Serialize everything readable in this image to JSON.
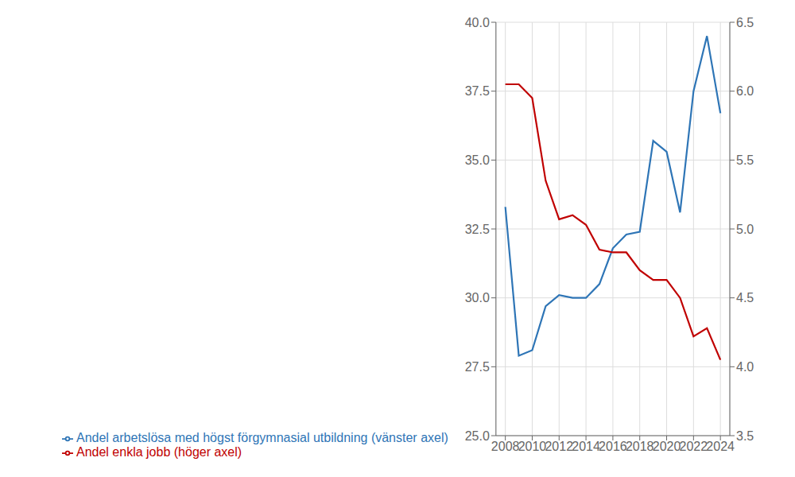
{
  "chart_data": {
    "type": "line",
    "x": [
      2008,
      2009,
      2010,
      2011,
      2012,
      2013,
      2014,
      2015,
      2016,
      2017,
      2018,
      2019,
      2020,
      2021,
      2022,
      2023,
      2024
    ],
    "series": [
      {
        "name": "Andel arbetslösa med högst förgymnasial utbildning (vänster axel)",
        "color": "#2E75B6",
        "values": [
          33.3,
          27.9,
          28.1,
          29.7,
          30.1,
          30.0,
          30.0,
          30.5,
          31.8,
          32.3,
          32.4,
          35.7,
          35.3,
          33.1,
          37.5,
          39.5,
          36.7
        ]
      },
      {
        "name": "Andel enkla jobb (höger axel)",
        "color": "#C00000",
        "axis": "y2",
        "values": [
          6.05,
          6.05,
          5.95,
          5.35,
          5.07,
          5.1,
          5.03,
          4.85,
          4.83,
          4.83,
          4.7,
          4.63,
          4.63,
          4.5,
          4.22,
          4.28,
          4.05
        ]
      }
    ],
    "xlim": [
      2007.3,
      2024.7
    ],
    "xticks": [
      2008,
      2010,
      2012,
      2014,
      2016,
      2018,
      2020,
      2022,
      2024
    ],
    "ylim": [
      25.0,
      40.0
    ],
    "yticks": [
      {
        "value": 25.0,
        "label": "25.0"
      },
      {
        "value": 27.5,
        "label": "27.5"
      },
      {
        "value": 30.0,
        "label": "30.0"
      },
      {
        "value": 32.5,
        "label": "32.5"
      },
      {
        "value": 35.0,
        "label": "35.0"
      },
      {
        "value": 37.5,
        "label": "37.5"
      },
      {
        "value": 40.0,
        "label": "40.0"
      }
    ],
    "y2lim": [
      3.5,
      6.5
    ],
    "y2ticks": [
      3.5,
      {
        "value": 4.0,
        "label": "4.0"
      },
      4.5,
      {
        "value": 5.0,
        "label": "5.0"
      },
      5.5,
      {
        "value": 6.0,
        "label": "6.0"
      },
      6.5
    ],
    "grid": true,
    "legend": "lower left"
  }
}
